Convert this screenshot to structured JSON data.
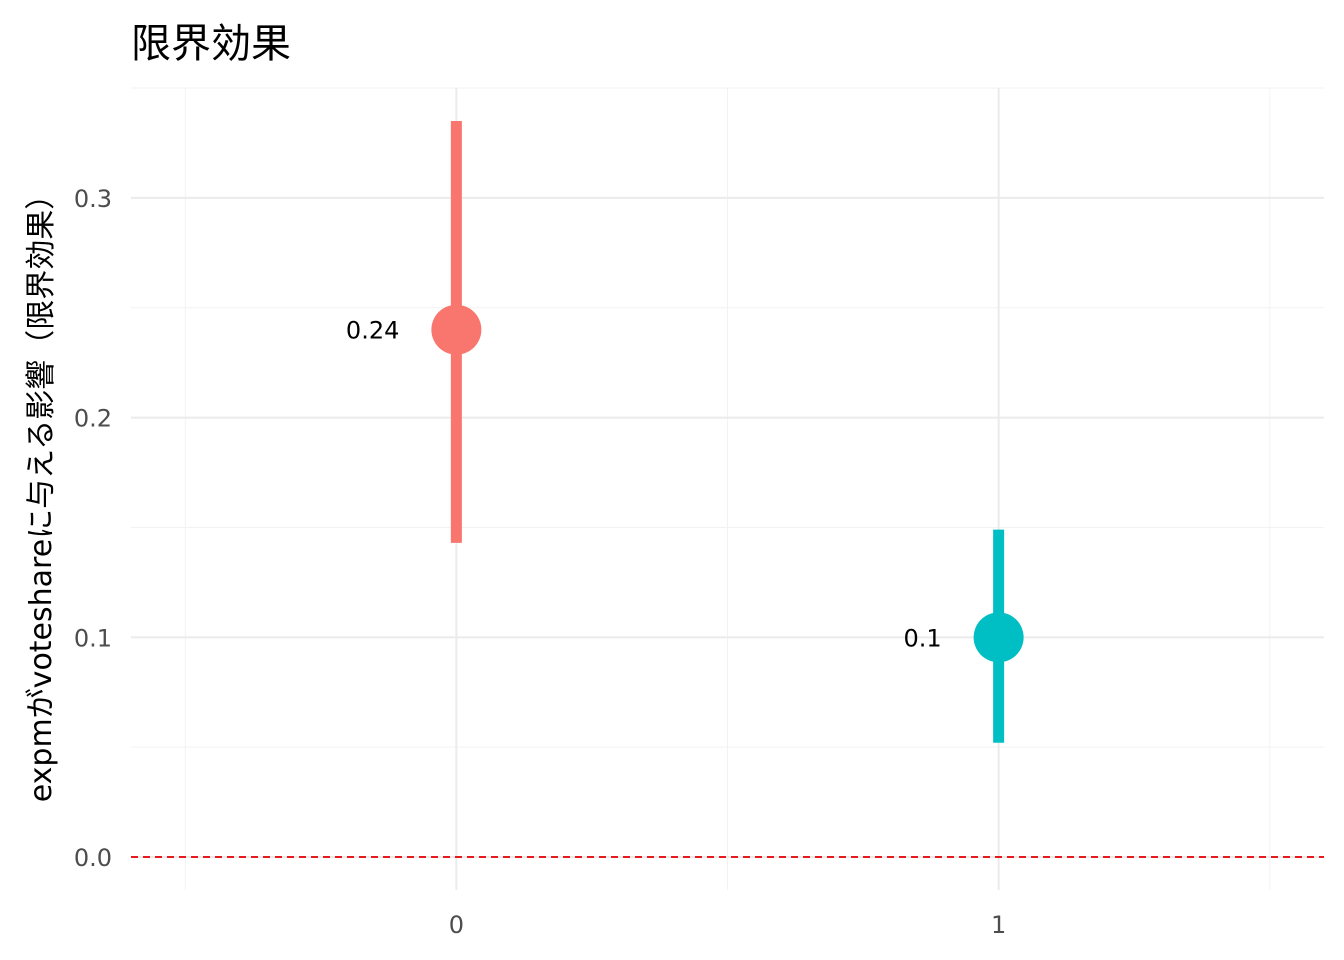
{
  "chart_data": {
    "type": "scatter",
    "title": "限界効果",
    "xlabel": "",
    "ylabel": "expmがvoteshareに与える影響（限界効果）",
    "categories": [
      "0",
      "1"
    ],
    "estimates": [
      0.24,
      0.1
    ],
    "ci_lower": [
      0.143,
      0.052
    ],
    "ci_upper": [
      0.335,
      0.149
    ],
    "point_labels": [
      "0.24",
      "0.1"
    ],
    "colors": [
      "#F8766D",
      "#00BFC4"
    ],
    "ylim": [
      -0.015,
      0.35
    ],
    "yticks": [
      0.0,
      0.1,
      0.2,
      0.3
    ],
    "ytick_labels": [
      "0.0",
      "0.1",
      "0.2",
      "0.3"
    ],
    "reference_line": {
      "y": 0.0,
      "style": "dashed",
      "color": "#e41a1c"
    },
    "grid": true,
    "legend": "none"
  }
}
